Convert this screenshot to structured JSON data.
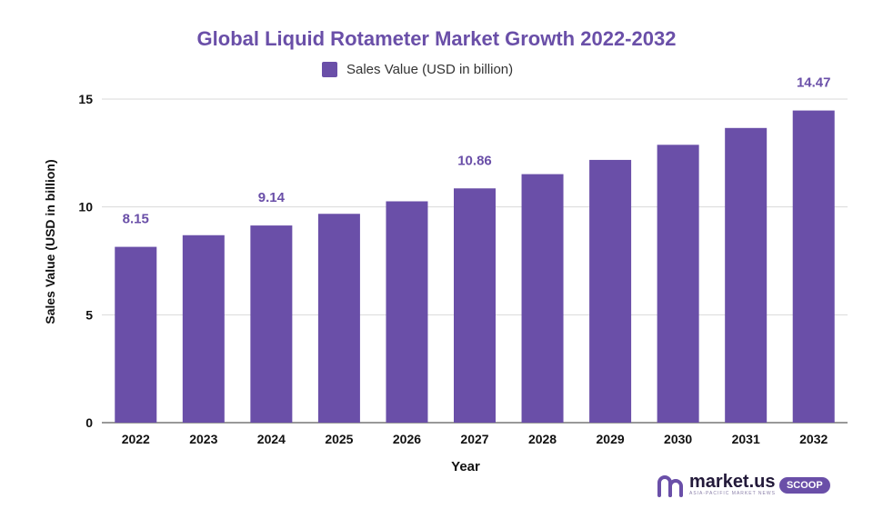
{
  "chart_data": {
    "type": "bar",
    "title": "Global Liquid Rotameter Market Growth 2022-2032",
    "xlabel": "Year",
    "ylabel": "Sales Value (USD in billion)",
    "categories": [
      "2022",
      "2023",
      "2024",
      "2025",
      "2026",
      "2027",
      "2028",
      "2029",
      "2030",
      "2031",
      "2032"
    ],
    "series": [
      {
        "name": "Sales Value (USD in billion)",
        "values": [
          8.15,
          8.69,
          9.14,
          9.68,
          10.26,
          10.86,
          11.52,
          12.18,
          12.88,
          13.66,
          14.47
        ]
      }
    ],
    "data_labels": [
      {
        "category": "2022",
        "text": "8.15"
      },
      {
        "category": "2024",
        "text": "9.14"
      },
      {
        "category": "2027",
        "text": "10.86"
      },
      {
        "category": "2032",
        "text": "14.47"
      }
    ],
    "yticks": [
      0,
      5,
      10,
      15
    ],
    "ylim": [
      0,
      15
    ],
    "grid": true,
    "legend_position": "top-center",
    "bar_color": "#6a4fa8",
    "label_color": "#6a4fa8"
  },
  "logo": {
    "word": "market.us",
    "tag": "ASIA-PACIFIC MARKET NEWS",
    "badge": "SCOOP"
  }
}
